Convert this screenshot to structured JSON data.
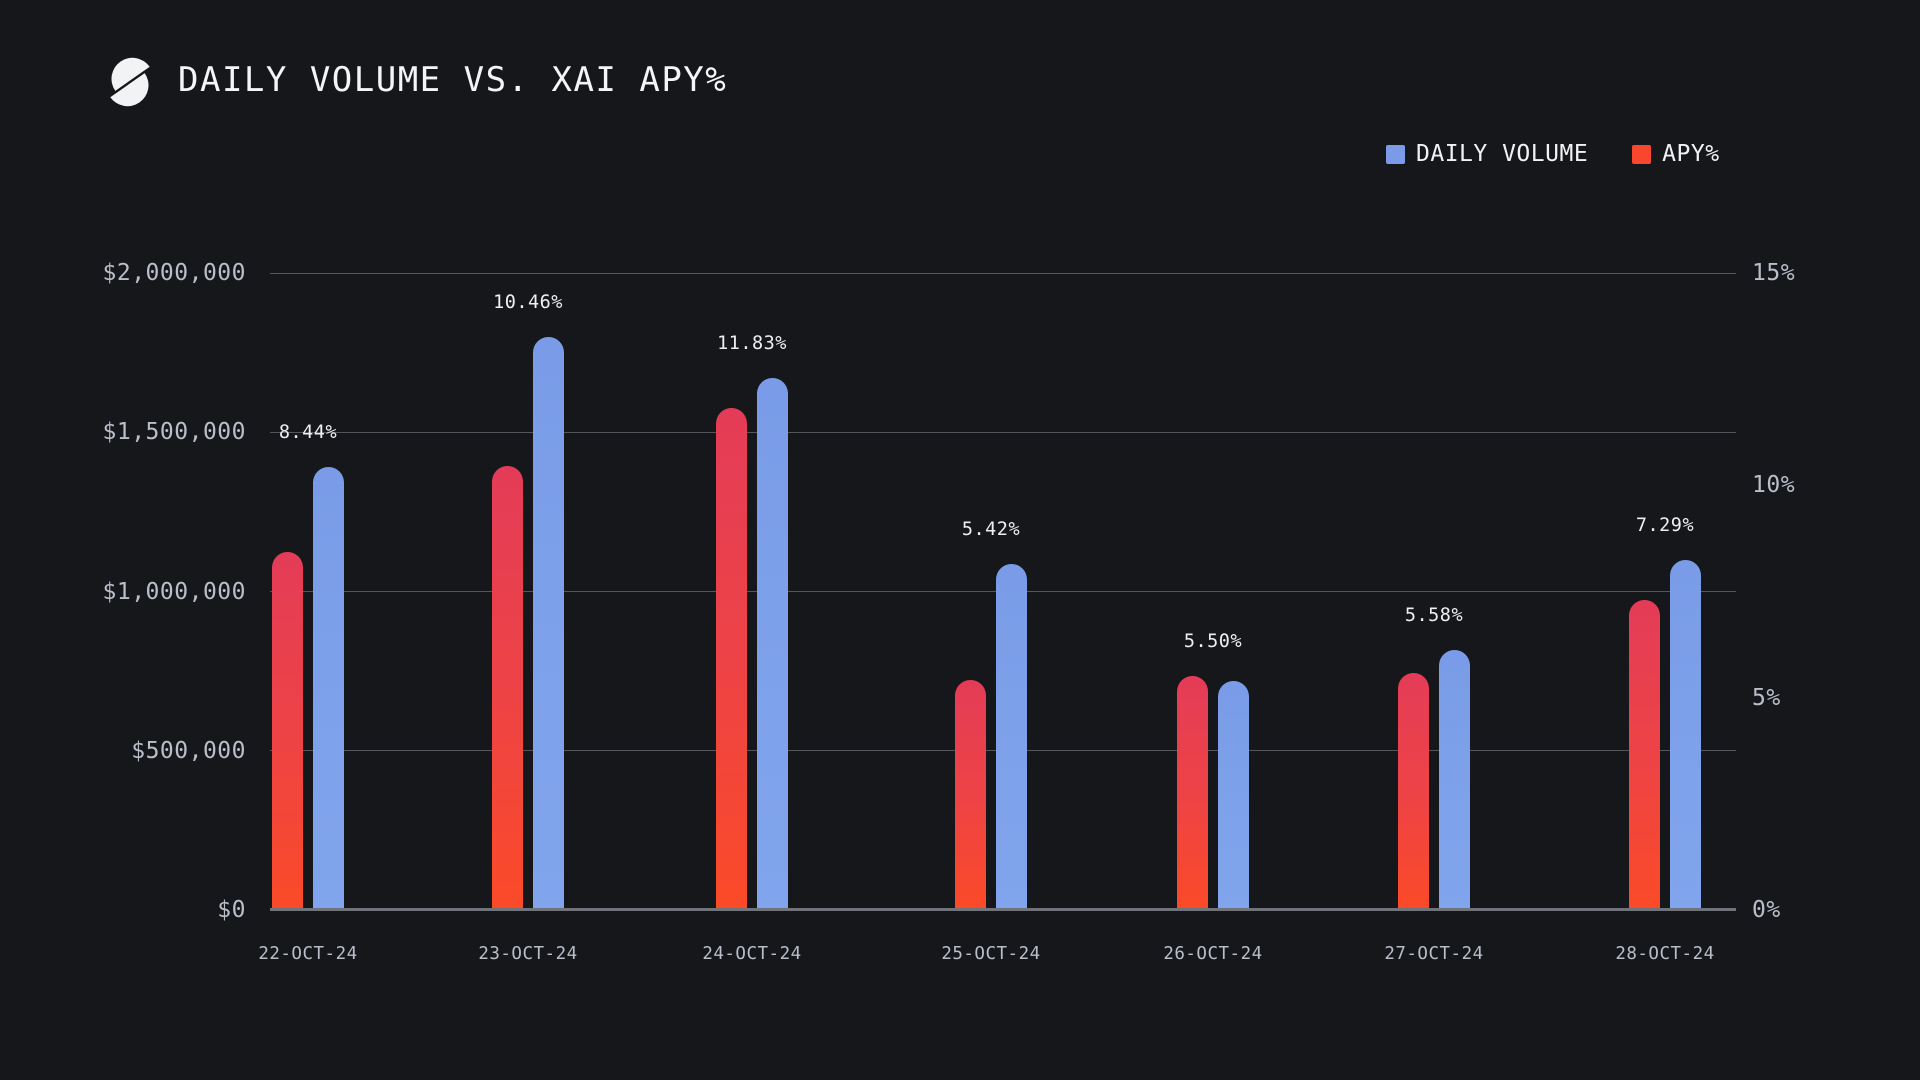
{
  "header": {
    "title": "DAILY VOLUME VS. XAI APY%",
    "logo": "slashed-circle-logo"
  },
  "legend": [
    {
      "label": "DAILY VOLUME",
      "color": "#7B9BE8"
    },
    {
      "label": "APY%",
      "color": "#F9472F"
    }
  ],
  "colors": {
    "background": "#16171B",
    "title": "#F4F5F7",
    "tick_label": "#B9BEC8",
    "value_label": "#EDEFF3",
    "gridline": "#54565D",
    "axis_line": "#70737A",
    "legend_blue": "#7B9BE8",
    "legend_red": "#F9472F",
    "bar_blue_top": "#7A9CE8",
    "bar_blue_bottom": "#81A5ED",
    "bar_red_top": "#E43C58",
    "bar_red_mid": "#EE4345",
    "bar_red_bottom": "#FB4A28",
    "legend_text": "#F1F2F5"
  },
  "chart_data": {
    "type": "bar",
    "title": "DAILY VOLUME VS. XAI APY%",
    "categories": [
      "22-OCT-24",
      "23-OCT-24",
      "24-OCT-24",
      "25-OCT-24",
      "26-OCT-24",
      "27-OCT-24",
      "28-OCT-24"
    ],
    "series": [
      {
        "name": "DAILY VOLUME",
        "axis": "left",
        "values": [
          1390000,
          1800000,
          1670000,
          1085000,
          720000,
          815000,
          1100000
        ]
      },
      {
        "name": "APY%",
        "axis": "right",
        "values": [
          8.44,
          10.46,
          11.83,
          5.42,
          5.5,
          5.58,
          7.29
        ],
        "value_labels": [
          "8.44%",
          "10.46%",
          "11.83%",
          "5.42%",
          "5.50%",
          "5.58%",
          "7.29%"
        ]
      }
    ],
    "left_axis": {
      "ticks": [
        "$2,000,000",
        "$1,500,000",
        "$1,000,000",
        "$500,000",
        "$0"
      ],
      "range": [
        0,
        2000000
      ]
    },
    "right_axis": {
      "ticks": [
        "15%",
        "10%",
        "5%",
        "0%"
      ],
      "range": [
        0,
        15
      ]
    },
    "grid": true,
    "legend_position": "top-right"
  }
}
